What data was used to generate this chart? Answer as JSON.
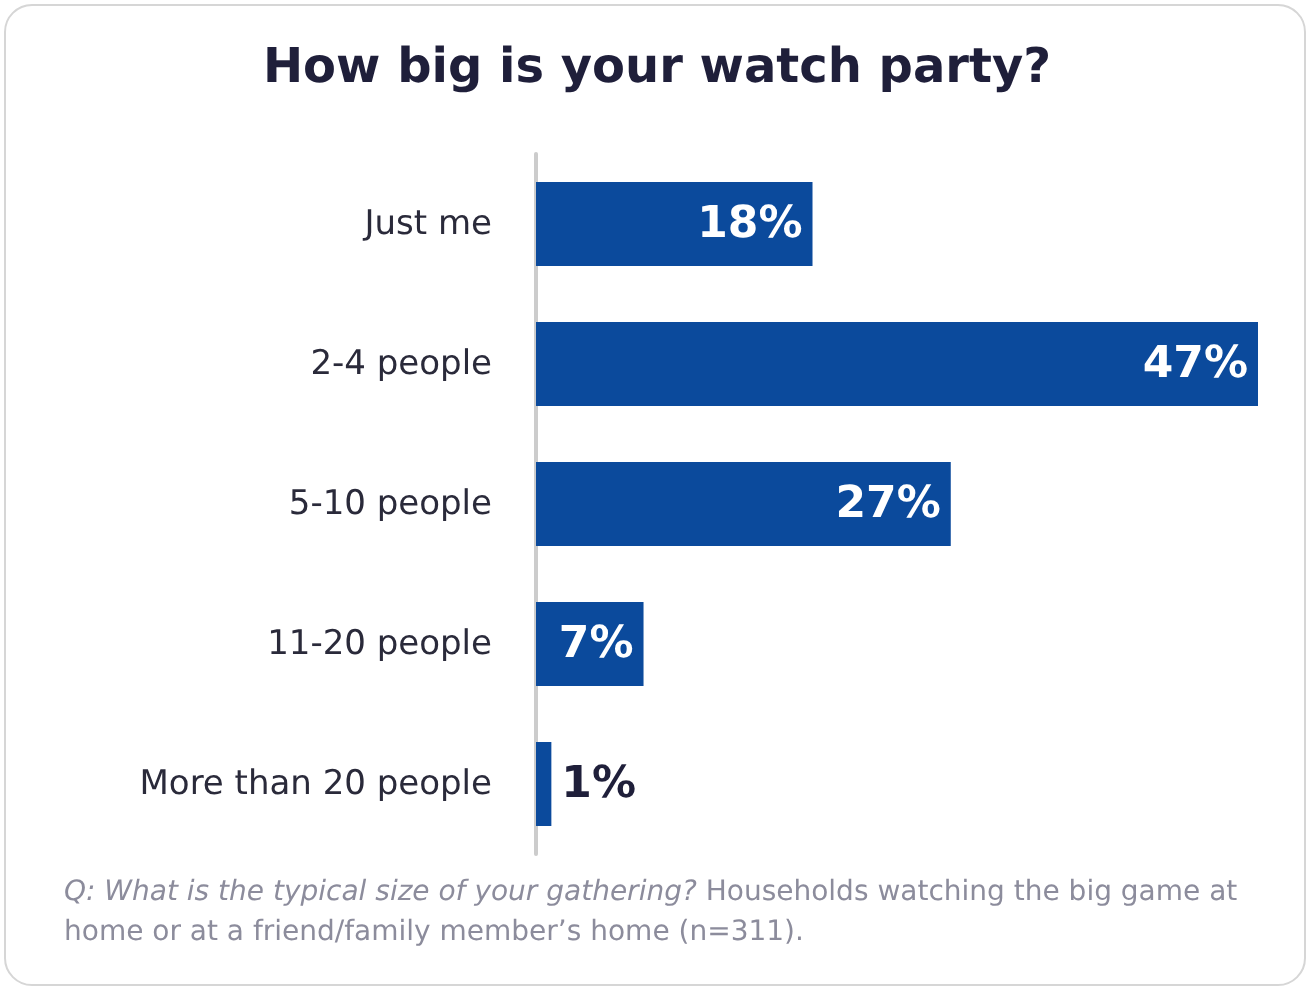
{
  "chart_data": {
    "type": "bar",
    "orientation": "horizontal",
    "title": "How big is your watch party?",
    "categories": [
      "Just me",
      "2-4 people",
      "5-10 people",
      "11-20 people",
      "More than 20 people"
    ],
    "values": [
      18,
      47,
      27,
      7,
      1
    ],
    "value_labels": [
      "18%",
      "47%",
      "27%",
      "7%",
      "1%"
    ],
    "color": "#0b4a9c",
    "grid": false,
    "annotations": [
      "Q: What is the typical size of your gathering?",
      "Households watching the big game at home or at a friend/family member’s home (n=311)."
    ]
  }
}
